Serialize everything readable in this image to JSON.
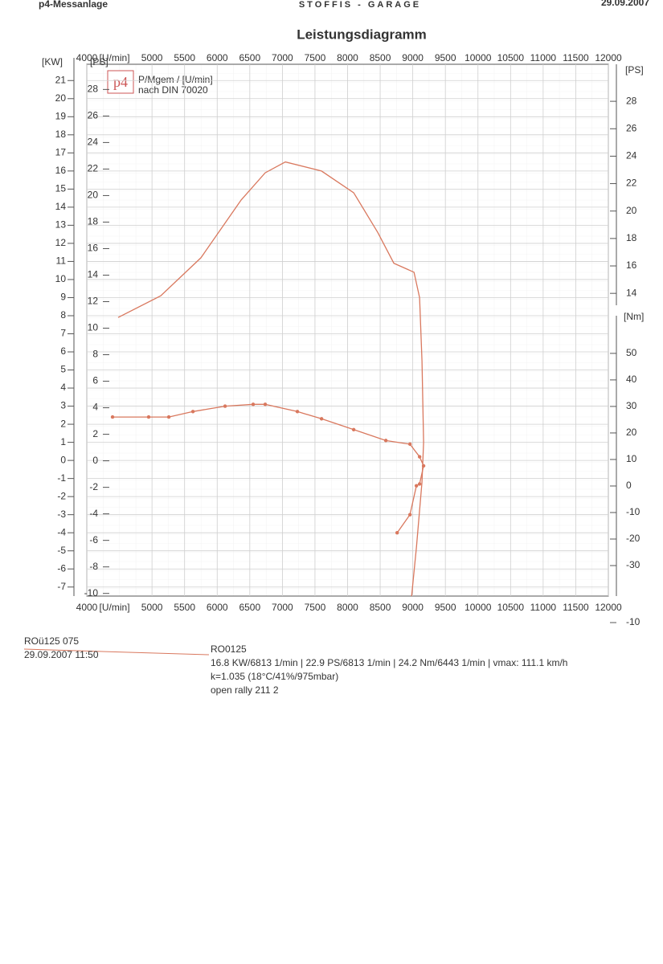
{
  "header": {
    "left": "p4-Messanlage",
    "center": "STOFFIS - GARAGE",
    "right": "29.09.2007"
  },
  "chart_data": {
    "type": "line",
    "title": "Leistungsdiagramm",
    "logo": "p4",
    "legend_lines": [
      "P/Mgem / [U/min]",
      "nach DIN 70020"
    ],
    "x_label": "[U/min]",
    "xlim": [
      4000,
      12000
    ],
    "xticks": [
      4000,
      5000,
      5500,
      6000,
      6500,
      7000,
      7500,
      8000,
      8500,
      9000,
      9500,
      10000,
      10500,
      11000,
      11500,
      12000
    ],
    "y_label": "[KW]",
    "ylim": [
      -7.5,
      21.9
    ],
    "yticks": [
      -7,
      -6,
      -5,
      -4,
      -3,
      -2,
      -1,
      0,
      1,
      2,
      3,
      4,
      5,
      6,
      7,
      8,
      9,
      10,
      11,
      12,
      13,
      14,
      15,
      16,
      17,
      18,
      19,
      20,
      21
    ],
    "extra_axes": [
      {
        "label": "[PS]",
        "lim": [
          -10.2,
          29.9
        ],
        "ticks": [
          -10,
          -8,
          -6,
          -4,
          -2,
          0,
          2,
          4,
          6,
          8,
          10,
          12,
          14,
          16,
          18,
          20,
          22,
          24,
          26,
          28
        ]
      },
      {
        "label": "[PS]",
        "lim": [
          -10,
          30.7
        ],
        "ticks": [
          -10,
          14,
          16,
          18,
          20,
          22,
          24,
          26,
          28
        ]
      },
      {
        "label": "[Nm]",
        "lim": [
          -41.5,
          64.2
        ],
        "ticks": [
          -30,
          -20,
          -10,
          0,
          10,
          20,
          30,
          40,
          50
        ]
      }
    ],
    "grid": true,
    "series": [
      {
        "color": "#d9785e",
        "markers": false,
        "x": [
          4481,
          5134,
          5751,
          6368,
          6737,
          7046,
          7601,
          8094,
          8464,
          8710,
          9019,
          9105,
          9142,
          9166,
          9142,
          9056,
          8982
        ],
        "values": [
          7.9,
          9.1,
          11.2,
          14.4,
          15.9,
          16.5,
          16.0,
          14.8,
          12.6,
          10.9,
          10.4,
          9.0,
          5.5,
          1.0,
          -1.2,
          -4.8,
          -7.5
        ]
      },
      {
        "color": "#d9785e",
        "markers": true,
        "x": [
          4395,
          4949,
          5258,
          5628,
          6121,
          6552,
          6737,
          7230,
          7601,
          8094,
          8587,
          8957,
          9105,
          9166,
          9105,
          9056,
          8957,
          8760
        ],
        "values": [
          2.4,
          2.4,
          2.4,
          2.7,
          3.0,
          3.1,
          3.1,
          2.7,
          2.3,
          1.7,
          1.1,
          0.9,
          0.2,
          -0.3,
          -1.3,
          -1.4,
          -3.0,
          -4.0
        ]
      }
    ]
  },
  "footer": {
    "left": [
      "ROü125 075",
      "29.09.2007  11:50"
    ],
    "right": [
      "RO0125",
      "16.8 KW/6813 1/min  |  22.9 PS/6813 1/min  |  24.2 Nm/6443 1/min | vmax: 111.1 km/h",
      "k=1.035 (18°C/41%/975mbar)",
      "open rally 211 2"
    ]
  }
}
